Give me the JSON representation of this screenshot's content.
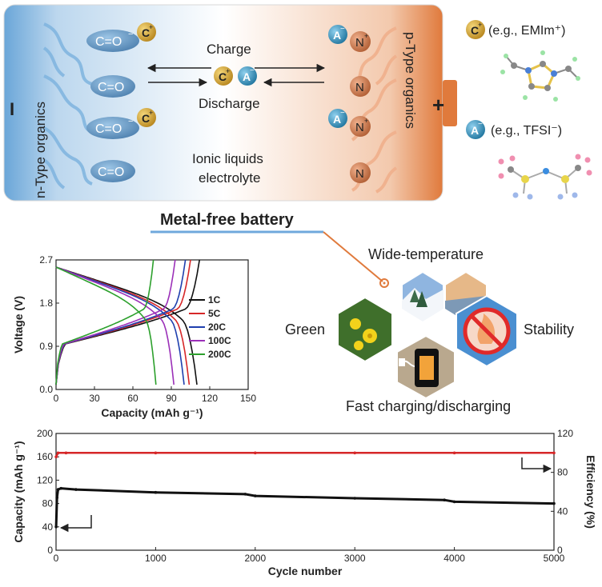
{
  "battery": {
    "left_terminal": "I",
    "right_terminal": "+",
    "n_type_label": "n-Type organics",
    "p_type_label": "p-Type organics",
    "carbonyl_charged": "C=O",
    "carbonyl_neutral": "C=O",
    "cation_symbol": "C",
    "anion_symbol": "A",
    "nitrogen_symbol": "N",
    "charge_label": "Charge",
    "discharge_label": "Discharge",
    "electrolyte_line1": "Ionic liquids",
    "electrolyte_line2": "electrolyte"
  },
  "legend_ions": {
    "cation_example": "(e.g., EMIm⁺)",
    "anion_example": "(e.g., TFSI⁻)"
  },
  "caption": "Metal-free battery",
  "features": {
    "top": "Wide-temperature",
    "left": "Green",
    "right": "Stability",
    "bottom": "Fast charging/discharging"
  },
  "colors": {
    "n_side": "#5b9bd5",
    "p_side": "#e07a3c",
    "cation": "#d4a53a",
    "anion": "#3a8fb8",
    "carbonyl_ellipse": "#4f86b5",
    "nitrogen": "#c47a52"
  },
  "chart_data": [
    {
      "type": "line",
      "title": "",
      "xlabel": "Capacity (mAh g⁻¹)",
      "ylabel": "Voltage (V)",
      "xlim": [
        0,
        150
      ],
      "ylim": [
        0,
        2.7
      ],
      "xticks": [
        "0",
        "30",
        "60",
        "90",
        "120",
        "150"
      ],
      "yticks": [
        "0.0",
        "0.9",
        "1.8",
        "2.7"
      ],
      "legend_position": "right",
      "series": [
        {
          "name": "1C",
          "color": "#111111",
          "discharge_capacity": 110,
          "charge_capacity": 112
        },
        {
          "name": "5C",
          "color": "#d62728",
          "discharge_capacity": 104,
          "charge_capacity": 105
        },
        {
          "name": "20C",
          "color": "#1f3fae",
          "discharge_capacity": 100,
          "charge_capacity": 101
        },
        {
          "name": "100C",
          "color": "#9b30b8",
          "discharge_capacity": 92,
          "charge_capacity": 93
        },
        {
          "name": "200C",
          "color": "#2ca02c",
          "discharge_capacity": 78,
          "charge_capacity": 76
        }
      ]
    },
    {
      "type": "scatter",
      "title": "",
      "xlabel": "Cycle number",
      "ylabel": "Capacity (mAh g⁻¹)",
      "y2label": "Efficiency (%)",
      "xlim": [
        0,
        5000
      ],
      "ylim": [
        0,
        200
      ],
      "y2lim": [
        0,
        120
      ],
      "xticks": [
        "0",
        "1000",
        "2000",
        "3000",
        "4000",
        "5000"
      ],
      "yticks": [
        "0",
        "40",
        "80",
        "120",
        "160",
        "200"
      ],
      "y2ticks": [
        "0",
        "40",
        "80",
        "120"
      ],
      "series": [
        {
          "name": "Capacity",
          "axis": "left",
          "color": "#111111",
          "x": [
            1,
            10,
            20,
            50,
            200,
            1000,
            1900,
            2000,
            3000,
            3900,
            4000,
            5000
          ],
          "y": [
            40,
            90,
            104,
            106,
            104,
            99,
            96,
            93,
            89,
            86,
            83,
            80
          ]
        },
        {
          "name": "Efficiency",
          "axis": "right",
          "color": "#d62728",
          "x": [
            1,
            20,
            100,
            1000,
            2000,
            3000,
            4000,
            5000
          ],
          "y": [
            96,
            100,
            100,
            100,
            100,
            100,
            100,
            100
          ]
        }
      ]
    }
  ]
}
